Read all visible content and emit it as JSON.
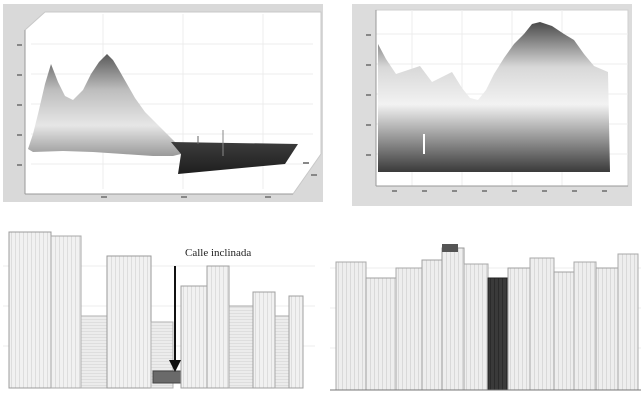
{
  "annotation": {
    "label": "Calle inclinada"
  },
  "colors": {
    "frame": "#d6d6d6",
    "plot_bg": "#ffffff",
    "grid": "#e4e4e4",
    "dark": "#2a2a2a",
    "light": "#e8e8e8"
  }
}
